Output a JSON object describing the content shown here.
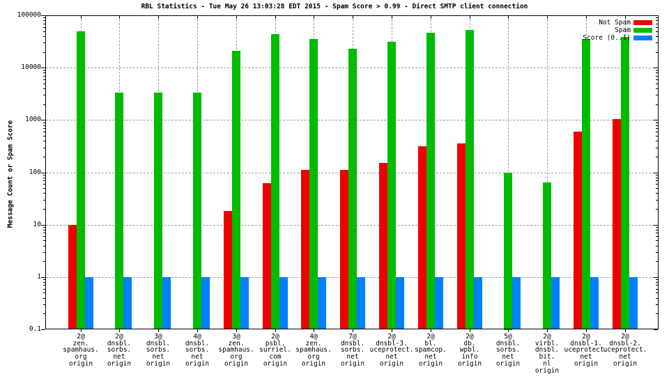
{
  "chart_data": {
    "type": "bar",
    "title": "RBL Statistics - Tue May 26 13:03:28 EDT 2015 - Spam Score > 0.99 - Direct SMTP client connection",
    "ylabel": "Message Count or Spam Score",
    "xlabel": "",
    "y_scale": "log",
    "ylim": [
      0.1,
      100000
    ],
    "grid": true,
    "legend_position": "top-right-inside",
    "yticks": [
      {
        "v": 100000,
        "label": "100000"
      },
      {
        "v": 10000,
        "label": "10000"
      },
      {
        "v": 1000,
        "label": "1000"
      },
      {
        "v": 100,
        "label": "100"
      },
      {
        "v": 10,
        "label": "10"
      },
      {
        "v": 1,
        "label": "1"
      },
      {
        "v": 0.1,
        "label": "0.1"
      }
    ],
    "categories": [
      [
        "2@",
        "zen.",
        "spamhaus.",
        "org",
        "origin"
      ],
      [
        "2@",
        "dnsbl.",
        "sorbs.",
        "net",
        "origin"
      ],
      [
        "3@",
        "dnsbl.",
        "sorbs.",
        "net",
        "origin"
      ],
      [
        "4@",
        "dnsbl.",
        "sorbs.",
        "net",
        "origin"
      ],
      [
        "3@",
        "zen.",
        "spamhaus.",
        "org",
        "origin"
      ],
      [
        "2@",
        "psbl.",
        "surriel.",
        "com",
        "origin"
      ],
      [
        "4@",
        "zen.",
        "spamhaus.",
        "org",
        "origin"
      ],
      [
        "7@",
        "dnsbl.",
        "sorbs.",
        "net",
        "origin"
      ],
      [
        "2@",
        "dnsbl-3.",
        "uceprotect.",
        "net",
        "origin"
      ],
      [
        "2@",
        "bl.",
        "spamcop.",
        "net",
        "origin"
      ],
      [
        "2@",
        "db.",
        "wpbl.",
        "info",
        "origin"
      ],
      [
        "5@",
        "dnsbl.",
        "sorbs.",
        "net",
        "origin"
      ],
      [
        "2@",
        "virbl.",
        "dnsbl.",
        "bit.",
        "nl",
        "origin"
      ],
      [
        "2@",
        "dnsbl-1.",
        "uceprotect.",
        "net",
        "origin"
      ],
      [
        "2@",
        "dnsbl-2.",
        "uceprotect.",
        "net",
        "origin"
      ]
    ],
    "series": [
      {
        "name": "Not Spam",
        "color": "#ee0000",
        "values": [
          10,
          0,
          0,
          0,
          18,
          63,
          110,
          110,
          150,
          320,
          360,
          0,
          0,
          600,
          1050
        ]
      },
      {
        "name": "Spam",
        "color": "#00bb00",
        "values": [
          49000,
          3300,
          3300,
          3300,
          21000,
          44000,
          35000,
          23000,
          31000,
          47000,
          53000,
          100,
          65,
          35000,
          39000
        ]
      },
      {
        "name": "Score (0..1)",
        "color": "#0080ff",
        "values": [
          1,
          1,
          1,
          1,
          1,
          1,
          1,
          1,
          1,
          1,
          1,
          1,
          1,
          1,
          1
        ]
      }
    ]
  },
  "colors": {
    "grid": "#9c9c9c",
    "axis": "#000000",
    "background": "#ffffff"
  }
}
